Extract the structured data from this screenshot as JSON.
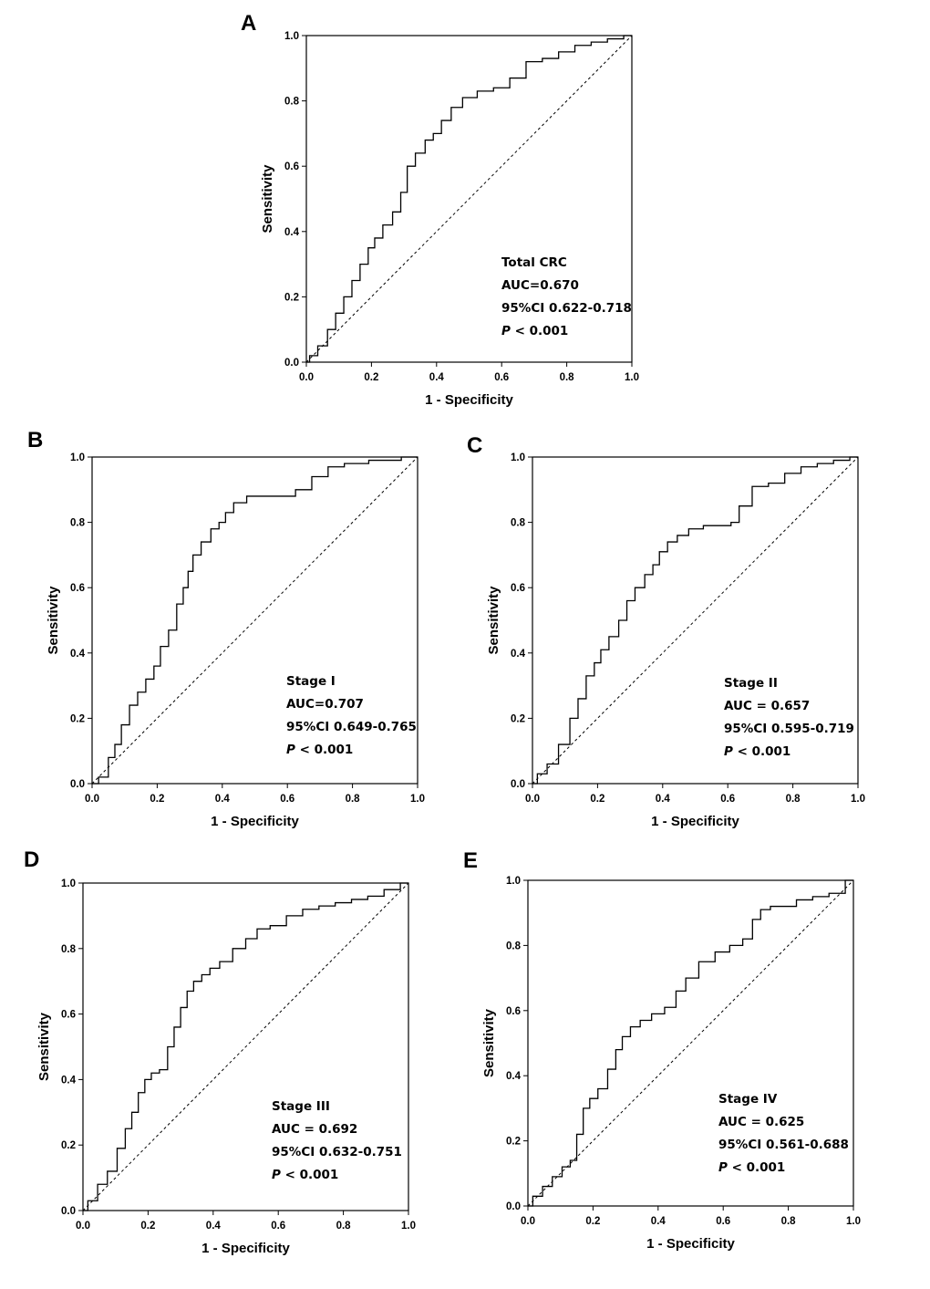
{
  "colors": {
    "curve": "#000000",
    "reference": "#000000",
    "background": "#ffffff"
  },
  "chart_data": [
    {
      "panel": "A",
      "type": "line",
      "xlabel": "1 - Specificity",
      "ylabel": "Sensitivity",
      "xlim": [
        0,
        1
      ],
      "ylim": [
        0,
        1
      ],
      "ticks": [
        "0.0",
        "0.2",
        "0.4",
        "0.6",
        "0.8",
        "1.0"
      ],
      "annotation": {
        "title": "Total CRC",
        "auc": "AUC=0.670",
        "ci": "95%CI 0.622-0.718",
        "p_symbol": "P",
        "p_rest": " < 0.001"
      },
      "series": [
        {
          "name": "ROC",
          "x": [
            0,
            0.02,
            0.05,
            0.08,
            0.1,
            0.13,
            0.15,
            0.18,
            0.2,
            0.22,
            0.25,
            0.28,
            0.3,
            0.32,
            0.35,
            0.38,
            0.4,
            0.43,
            0.46,
            0.5,
            0.55,
            0.6,
            0.65,
            0.7,
            0.75,
            0.8,
            0.85,
            0.9,
            0.95,
            1.0
          ],
          "y": [
            0,
            0.02,
            0.05,
            0.1,
            0.15,
            0.2,
            0.25,
            0.3,
            0.35,
            0.38,
            0.42,
            0.46,
            0.52,
            0.6,
            0.64,
            0.68,
            0.7,
            0.74,
            0.78,
            0.81,
            0.83,
            0.84,
            0.87,
            0.92,
            0.93,
            0.95,
            0.97,
            0.98,
            0.99,
            1.0
          ]
        },
        {
          "name": "Reference",
          "x": [
            0,
            1
          ],
          "y": [
            0,
            1
          ]
        }
      ]
    },
    {
      "panel": "B",
      "type": "line",
      "xlabel": "1 - Specificity",
      "ylabel": "Sensitivity",
      "xlim": [
        0,
        1
      ],
      "ylim": [
        0,
        1
      ],
      "ticks": [
        "0.0",
        "0.2",
        "0.4",
        "0.6",
        "0.8",
        "1.0"
      ],
      "annotation": {
        "title": "Stage I",
        "auc": "AUC=0.707",
        "ci": "95%CI 0.649-0.765",
        "p_symbol": "P",
        "p_rest": " < 0.001"
      },
      "series": [
        {
          "name": "ROC",
          "x": [
            0,
            0.04,
            0.06,
            0.08,
            0.1,
            0.13,
            0.15,
            0.18,
            0.2,
            0.22,
            0.25,
            0.27,
            0.29,
            0.3,
            0.32,
            0.35,
            0.38,
            0.4,
            0.42,
            0.45,
            0.5,
            0.55,
            0.6,
            0.65,
            0.7,
            0.75,
            0.8,
            0.9,
            1.0
          ],
          "y": [
            0,
            0.02,
            0.08,
            0.12,
            0.18,
            0.24,
            0.28,
            0.32,
            0.36,
            0.42,
            0.47,
            0.55,
            0.6,
            0.65,
            0.7,
            0.74,
            0.78,
            0.8,
            0.83,
            0.86,
            0.88,
            0.88,
            0.88,
            0.9,
            0.94,
            0.97,
            0.98,
            0.99,
            1.0
          ]
        },
        {
          "name": "Reference",
          "x": [
            0,
            1
          ],
          "y": [
            0,
            1
          ]
        }
      ]
    },
    {
      "panel": "C",
      "type": "line",
      "xlabel": "1 - Specificity",
      "ylabel": "Sensitivity",
      "xlim": [
        0,
        1
      ],
      "ylim": [
        0,
        1
      ],
      "ticks": [
        "0.0",
        "0.2",
        "0.4",
        "0.6",
        "0.8",
        "1.0"
      ],
      "annotation": {
        "title": "Stage II",
        "auc": "AUC = 0.657",
        "ci": "95%CI 0.595-0.719",
        "p_symbol": "P",
        "p_rest": " < 0.001"
      },
      "series": [
        {
          "name": "ROC",
          "x": [
            0,
            0.03,
            0.06,
            0.1,
            0.13,
            0.15,
            0.18,
            0.2,
            0.22,
            0.25,
            0.28,
            0.3,
            0.33,
            0.36,
            0.38,
            0.4,
            0.43,
            0.46,
            0.5,
            0.55,
            0.6,
            0.62,
            0.65,
            0.7,
            0.75,
            0.8,
            0.85,
            0.9,
            0.95,
            1.0
          ],
          "y": [
            0,
            0.03,
            0.06,
            0.12,
            0.2,
            0.26,
            0.33,
            0.37,
            0.41,
            0.45,
            0.5,
            0.56,
            0.6,
            0.64,
            0.67,
            0.71,
            0.74,
            0.76,
            0.78,
            0.79,
            0.79,
            0.8,
            0.85,
            0.91,
            0.92,
            0.95,
            0.97,
            0.98,
            0.99,
            1.0
          ]
        },
        {
          "name": "Reference",
          "x": [
            0,
            1
          ],
          "y": [
            0,
            1
          ]
        }
      ]
    },
    {
      "panel": "D",
      "type": "line",
      "xlabel": "1 - Specificity",
      "ylabel": "Sensitivity",
      "xlim": [
        0,
        1
      ],
      "ylim": [
        0,
        1
      ],
      "ticks": [
        "0.0",
        "0.2",
        "0.4",
        "0.6",
        "0.8",
        "1.0"
      ],
      "annotation": {
        "title": "Stage III",
        "auc": "AUC = 0.692",
        "ci": "95%CI 0.632-0.751",
        "p_symbol": "P",
        "p_rest": " < 0.001"
      },
      "series": [
        {
          "name": "ROC",
          "x": [
            0,
            0.03,
            0.06,
            0.09,
            0.12,
            0.14,
            0.16,
            0.18,
            0.2,
            0.22,
            0.25,
            0.27,
            0.29,
            0.31,
            0.33,
            0.35,
            0.38,
            0.4,
            0.44,
            0.48,
            0.52,
            0.55,
            0.6,
            0.65,
            0.7,
            0.75,
            0.8,
            0.85,
            0.9,
            0.95,
            1.0
          ],
          "y": [
            0,
            0.03,
            0.08,
            0.12,
            0.19,
            0.25,
            0.3,
            0.36,
            0.4,
            0.42,
            0.43,
            0.5,
            0.56,
            0.62,
            0.67,
            0.7,
            0.72,
            0.74,
            0.76,
            0.8,
            0.83,
            0.86,
            0.87,
            0.9,
            0.92,
            0.93,
            0.94,
            0.95,
            0.96,
            0.98,
            1.0
          ]
        },
        {
          "name": "Reference",
          "x": [
            0,
            1
          ],
          "y": [
            0,
            1
          ]
        }
      ]
    },
    {
      "panel": "E",
      "type": "line",
      "xlabel": "1 - Specificity",
      "ylabel": "Sensitivity",
      "xlim": [
        0,
        1
      ],
      "ylim": [
        0,
        1
      ],
      "ticks": [
        "0.0",
        "0.2",
        "0.4",
        "0.6",
        "0.8",
        "1.0"
      ],
      "annotation": {
        "title": "Stage IV",
        "auc": "AUC = 0.625",
        "ci": "95%CI 0.561-0.688",
        "p_symbol": "P",
        "p_rest": " < 0.001"
      },
      "series": [
        {
          "name": "ROC",
          "x": [
            0,
            0.03,
            0.06,
            0.09,
            0.12,
            0.14,
            0.16,
            0.18,
            0.2,
            0.23,
            0.26,
            0.28,
            0.3,
            0.33,
            0.36,
            0.4,
            0.44,
            0.47,
            0.5,
            0.55,
            0.6,
            0.64,
            0.68,
            0.7,
            0.73,
            0.76,
            0.8,
            0.85,
            0.9,
            0.95,
            1.0
          ],
          "y": [
            0,
            0.03,
            0.06,
            0.09,
            0.12,
            0.14,
            0.22,
            0.3,
            0.33,
            0.36,
            0.42,
            0.48,
            0.52,
            0.55,
            0.57,
            0.59,
            0.61,
            0.66,
            0.7,
            0.75,
            0.78,
            0.8,
            0.82,
            0.88,
            0.91,
            0.92,
            0.92,
            0.94,
            0.95,
            0.96,
            1.0
          ]
        },
        {
          "name": "Reference",
          "x": [
            0,
            1
          ],
          "y": [
            0,
            1
          ]
        }
      ]
    }
  ]
}
